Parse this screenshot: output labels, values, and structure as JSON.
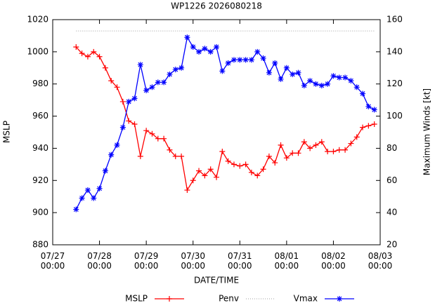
{
  "chart_data": {
    "type": "line",
    "title": "WP1226 2026080218",
    "xlabel": "DATE/TIME",
    "ylabel": "MSLP",
    "y2label": "Maximum Winds [kt]",
    "x": [
      "07/27 12:00",
      "07/27 15:00",
      "07/27 18:00",
      "07/27 21:00",
      "07/28 00:00",
      "07/28 03:00",
      "07/28 06:00",
      "07/28 09:00",
      "07/28 12:00",
      "07/28 15:00",
      "07/28 18:00",
      "07/28 21:00",
      "07/29 00:00",
      "07/29 03:00",
      "07/29 06:00",
      "07/29 09:00",
      "07/29 12:00",
      "07/29 15:00",
      "07/29 18:00",
      "07/29 21:00",
      "07/30 00:00",
      "07/30 03:00",
      "07/30 06:00",
      "07/30 09:00",
      "07/30 12:00",
      "07/30 15:00",
      "07/30 18:00",
      "07/30 21:00",
      "07/31 00:00",
      "07/31 03:00",
      "07/31 06:00",
      "07/31 09:00",
      "07/31 12:00",
      "07/31 15:00",
      "07/31 18:00",
      "07/31 21:00",
      "08/01 00:00",
      "08/01 03:00",
      "08/01 06:00",
      "08/01 09:00",
      "08/01 12:00",
      "08/01 15:00",
      "08/01 18:00",
      "08/01 21:00",
      "08/02 00:00",
      "08/02 03:00",
      "08/02 06:00",
      "08/02 09:00",
      "08/02 12:00",
      "08/02 15:00",
      "08/02 18:00",
      "08/02 21:00"
    ],
    "series": [
      {
        "name": "MSLP",
        "color": "#ff0000",
        "style": "solid",
        "marker": "plus",
        "axis": "y",
        "values": [
          1003,
          999,
          997,
          1000,
          997,
          990,
          982,
          978,
          969,
          957,
          955,
          935,
          951,
          949,
          946,
          946,
          939,
          935,
          935,
          914,
          920,
          926,
          923,
          927,
          922,
          938,
          932,
          930,
          929,
          930,
          925,
          923,
          927,
          935,
          931,
          942,
          934,
          937,
          937,
          944,
          940,
          942,
          944,
          938,
          938,
          939,
          939,
          943,
          947,
          953,
          954,
          955
        ]
      },
      {
        "name": "Penv",
        "color": "#a0a0a0",
        "style": "dotted",
        "marker": "none",
        "axis": "y",
        "values": [
          1013,
          1013,
          1013,
          1013,
          1013,
          1013,
          1013,
          1013,
          1013,
          1013,
          1013,
          1013,
          1013,
          1013,
          1013,
          1013,
          1013,
          1013,
          1013,
          1013,
          1013,
          1013,
          1013,
          1013,
          1013,
          1013,
          1013,
          1013,
          1013,
          1013,
          1013,
          1013,
          1013,
          1013,
          1013,
          1013,
          1013,
          1013,
          1013,
          1013,
          1013,
          1013,
          1013,
          1013,
          1013,
          1013,
          1013,
          1013,
          1013,
          1013,
          1013,
          1013
        ]
      },
      {
        "name": "Vmax",
        "color": "#0000ff",
        "style": "solid",
        "marker": "star",
        "axis": "y2",
        "values": [
          42,
          49,
          54,
          49,
          55,
          66,
          76,
          82,
          93,
          109,
          111,
          132,
          116,
          118,
          121,
          121,
          126,
          129,
          130,
          149,
          143,
          140,
          142,
          140,
          143,
          128,
          133,
          135,
          135,
          135,
          135,
          140,
          136,
          127,
          133,
          123,
          130,
          126,
          127,
          119,
          122,
          120,
          119,
          120,
          125,
          124,
          124,
          122,
          118,
          114,
          106,
          104
        ]
      }
    ],
    "xlim": [
      "07/27 00:00",
      "08/03 00:00"
    ],
    "xticks": [
      "07/27 00:00",
      "07/28 00:00",
      "07/29 00:00",
      "07/30 00:00",
      "07/31 00:00",
      "08/01 00:00",
      "08/02 00:00",
      "08/03 00:00"
    ],
    "ylim": [
      880,
      1020
    ],
    "yticks": [
      880,
      900,
      920,
      940,
      960,
      980,
      1000,
      1020
    ],
    "y2lim": [
      20,
      160
    ],
    "y2ticks": [
      20,
      40,
      60,
      80,
      100,
      120,
      140,
      160
    ],
    "legend": "bottom",
    "grid": false
  }
}
